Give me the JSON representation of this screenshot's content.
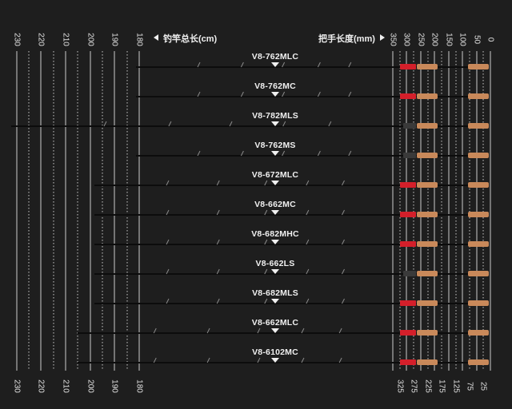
{
  "header": {
    "total_length_label": "钓竿总长(cm)",
    "handle_length_label": "把手长度(mm)"
  },
  "total_length_ticks": [
    "230",
    "220",
    "210",
    "200",
    "190",
    "180"
  ],
  "handle_ticks_top": [
    "350",
    "300",
    "250",
    "200",
    "150",
    "100",
    "50",
    "0"
  ],
  "handle_ticks_bottom": [
    "325",
    "275",
    "225",
    "175",
    "125",
    "75",
    "25"
  ],
  "rods": [
    {
      "model": "V8-762MLC"
    },
    {
      "model": "V8-762MC"
    },
    {
      "model": "V8-782MLS"
    },
    {
      "model": "V8-762MS"
    },
    {
      "model": "V8-672MLC"
    },
    {
      "model": "V8-662MC"
    },
    {
      "model": "V8-682MHC"
    },
    {
      "model": "V8-662LS"
    },
    {
      "model": "V8-682MLS"
    },
    {
      "model": "V8-662MLC"
    },
    {
      "model": "V8-6102MC"
    }
  ],
  "colors": {
    "background": "#1e1e1e",
    "line": "#cccccc",
    "cork": "#c9895a",
    "reel_seat": "#d41f2a",
    "blank": "#111111"
  }
}
